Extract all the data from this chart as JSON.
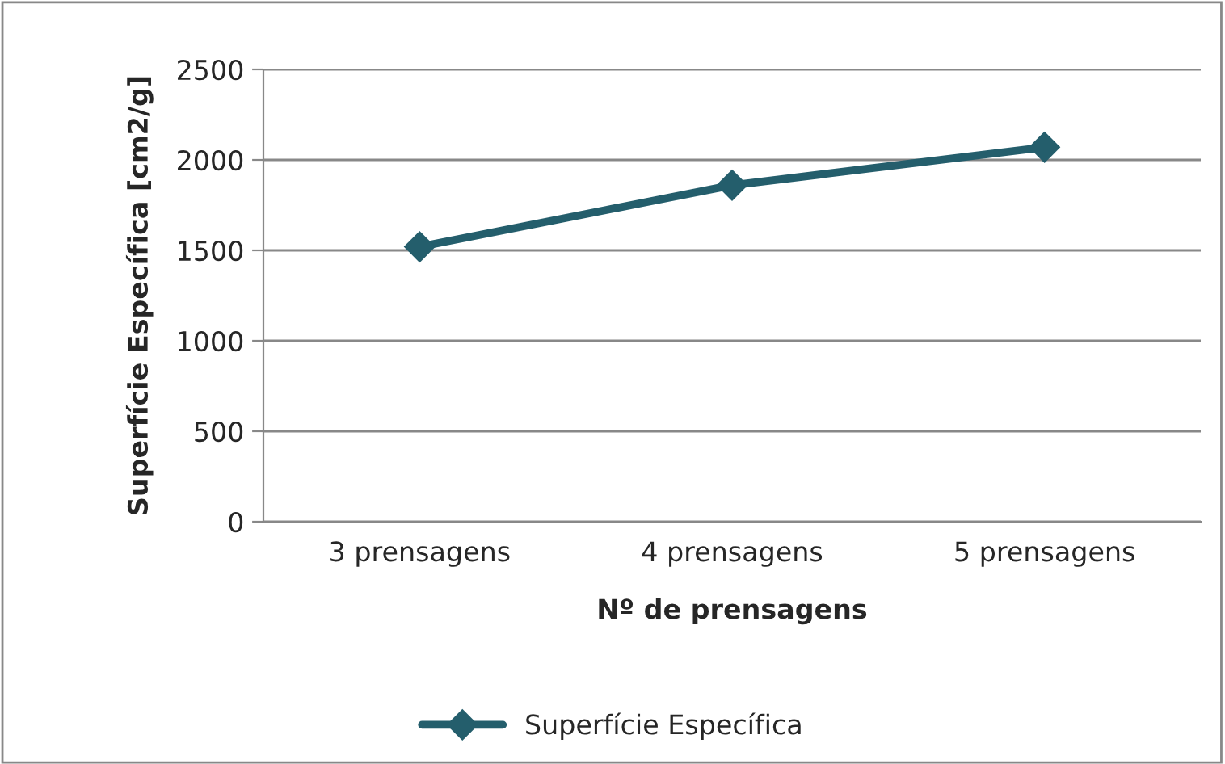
{
  "chart_data": {
    "type": "line",
    "xlabel": "Nº de prensagens",
    "ylabel": "Superfície Específica [cm2/g]",
    "categories": [
      "3 prensagens",
      "4 prensagens",
      "5 prensagens"
    ],
    "series": [
      {
        "name": "Superfície Específica",
        "color": "#245e6c",
        "values": [
          1520,
          1860,
          2070
        ]
      }
    ],
    "ylim": [
      0,
      2500
    ],
    "yticks": [
      0,
      500,
      1000,
      1500,
      2000,
      2500
    ],
    "grid": "y",
    "legend": "bottom",
    "marker": "diamond",
    "line_style": "solid"
  }
}
